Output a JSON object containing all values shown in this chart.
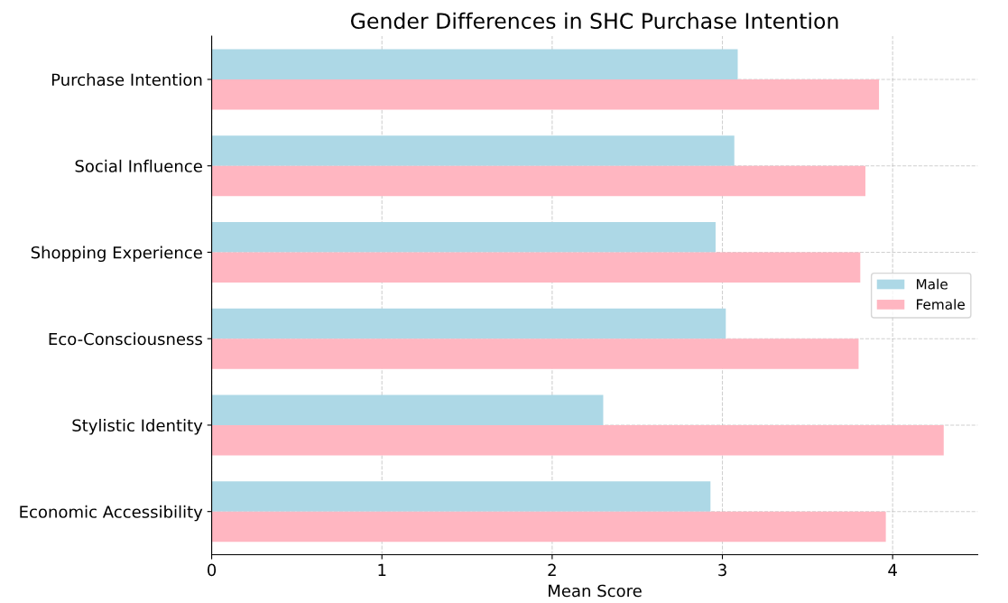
{
  "chart_data": {
    "type": "bar",
    "orientation": "horizontal",
    "title": "Gender Differences in SHC Purchase Intention",
    "xlabel": "Mean Score",
    "categories": [
      "Purchase Intention",
      "Social Influence",
      "Shopping Experience",
      "Eco-Consciousness",
      "Stylistic Identity",
      "Economic Accessibility"
    ],
    "series": [
      {
        "name": "Male",
        "color": "#add8e6",
        "values": [
          3.09,
          3.07,
          2.96,
          3.02,
          2.3,
          2.93
        ]
      },
      {
        "name": "Female",
        "color": "#ffb6c1",
        "values": [
          3.92,
          3.84,
          3.81,
          3.8,
          4.3,
          3.96
        ]
      }
    ],
    "xlim": [
      0,
      4.5
    ],
    "xticks": [
      0,
      1,
      2,
      3,
      4
    ],
    "grid": true,
    "legend": "right"
  }
}
